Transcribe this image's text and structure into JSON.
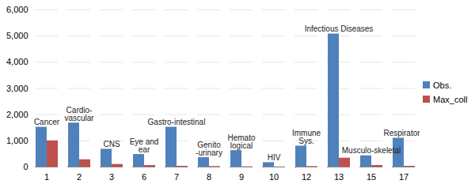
{
  "chart_data": {
    "type": "bar",
    "categories": [
      "1",
      "2",
      "3",
      "6",
      "7",
      "8",
      "9",
      "10",
      "12",
      "13",
      "15",
      "17"
    ],
    "series": [
      {
        "name": "Obs.",
        "color": "#4F81BD",
        "values": [
          1520,
          1680,
          680,
          480,
          1520,
          360,
          630,
          170,
          800,
          5080,
          430,
          1100
        ]
      },
      {
        "name": "Max_coll",
        "color": "#C0504D",
        "values": [
          1000,
          280,
          100,
          60,
          30,
          20,
          10,
          5,
          20,
          340,
          60,
          30
        ]
      }
    ],
    "annotations": [
      {
        "category": "1",
        "text": "Cancer"
      },
      {
        "category": "2",
        "text": "Cardio-\nvascular"
      },
      {
        "category": "3",
        "text": "CNS"
      },
      {
        "category": "6",
        "text": "Eye and\near"
      },
      {
        "category": "7",
        "text": "Gastro-intestinal"
      },
      {
        "category": "8",
        "text": "Genito\n-urinary"
      },
      {
        "category": "9",
        "text": "Hemato\nlogical"
      },
      {
        "category": "10",
        "text": "HIV"
      },
      {
        "category": "12",
        "text": "Immune\nSys."
      },
      {
        "category": "13",
        "text": "Infectious Diseases"
      },
      {
        "category": "15",
        "text": "Musculo-skeletal"
      },
      {
        "category": "17",
        "text": "Respiratory"
      }
    ],
    "ylim": [
      0,
      6000
    ],
    "yticks": [
      0,
      1000,
      2000,
      3000,
      4000,
      5000,
      6000
    ],
    "grid": true,
    "legend": "right"
  }
}
